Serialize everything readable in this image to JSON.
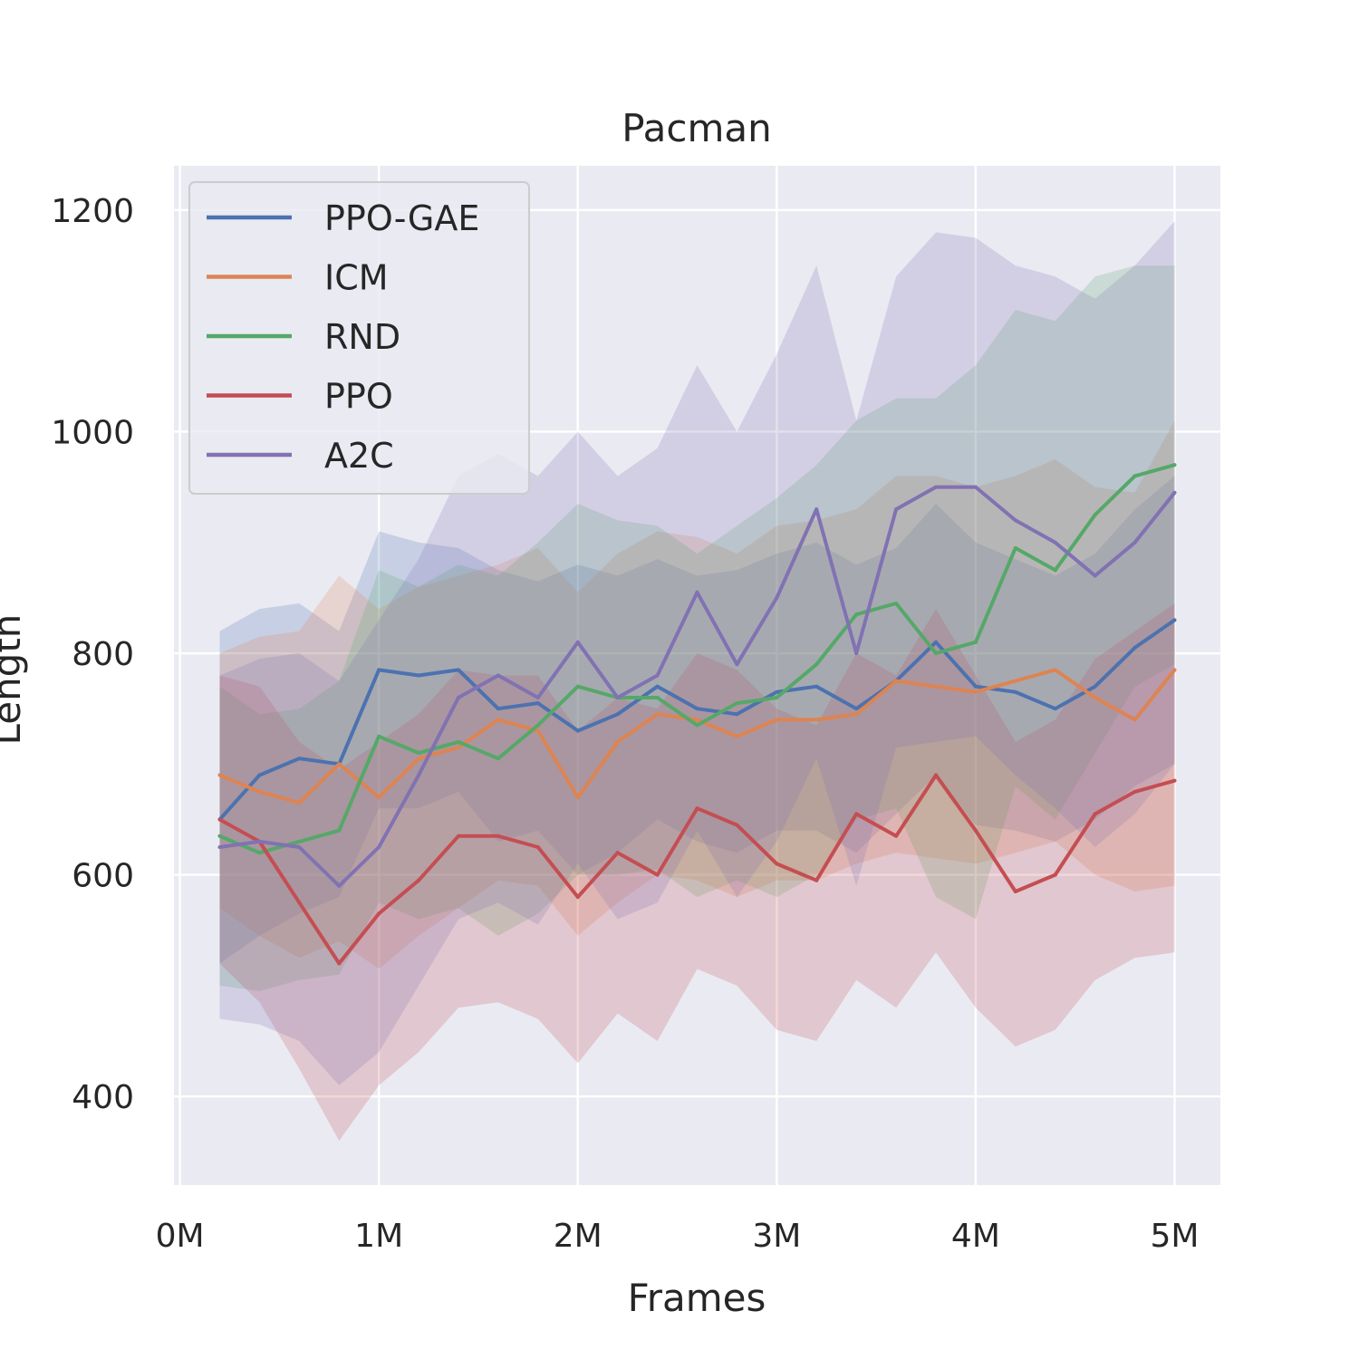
{
  "chart_data": {
    "type": "line",
    "title": "Pacman",
    "xlabel": "Frames",
    "ylabel": "Length",
    "xlim": [
      -30000,
      5230000
    ],
    "ylim": [
      320,
      1240
    ],
    "x_ticks": [
      {
        "value": 0,
        "label": "0M"
      },
      {
        "value": 1000000,
        "label": "1M"
      },
      {
        "value": 2000000,
        "label": "2M"
      },
      {
        "value": 3000000,
        "label": "3M"
      },
      {
        "value": 4000000,
        "label": "4M"
      },
      {
        "value": 5000000,
        "label": "5M"
      }
    ],
    "y_ticks": [
      {
        "value": 400,
        "label": "400"
      },
      {
        "value": 600,
        "label": "600"
      },
      {
        "value": 800,
        "label": "800"
      },
      {
        "value": 1000,
        "label": "1000"
      },
      {
        "value": 1200,
        "label": "1200"
      }
    ],
    "grid": true,
    "legend_position": "top-left",
    "x": [
      200000,
      400000,
      600000,
      800000,
      1000000,
      1200000,
      1400000,
      1600000,
      1800000,
      2000000,
      2200000,
      2400000,
      2600000,
      2800000,
      3000000,
      3200000,
      3400000,
      3600000,
      3800000,
      4000000,
      4200000,
      4400000,
      4600000,
      4800000,
      5000000
    ],
    "series": [
      {
        "name": "PPO-GAE",
        "color": "#4c72b0",
        "values": [
          650,
          690,
          705,
          700,
          785,
          780,
          785,
          750,
          755,
          730,
          745,
          770,
          750,
          745,
          765,
          770,
          750,
          775,
          810,
          770,
          765,
          750,
          770,
          805,
          830
        ],
        "upper": [
          820,
          840,
          845,
          820,
          910,
          900,
          895,
          875,
          865,
          880,
          870,
          885,
          870,
          875,
          890,
          900,
          880,
          895,
          935,
          900,
          885,
          870,
          890,
          930,
          960
        ],
        "lower": [
          520,
          545,
          565,
          580,
          660,
          660,
          675,
          630,
          640,
          600,
          620,
          650,
          630,
          620,
          640,
          640,
          620,
          655,
          690,
          645,
          640,
          630,
          650,
          680,
          700
        ]
      },
      {
        "name": "ICM",
        "color": "#dd8452",
        "values": [
          690,
          675,
          665,
          700,
          670,
          705,
          715,
          740,
          730,
          670,
          720,
          745,
          740,
          725,
          740,
          740,
          745,
          775,
          770,
          765,
          775,
          785,
          760,
          740,
          785
        ],
        "upper": [
          800,
          815,
          820,
          870,
          840,
          860,
          870,
          880,
          895,
          855,
          890,
          910,
          905,
          890,
          915,
          920,
          930,
          960,
          960,
          950,
          960,
          975,
          950,
          945,
          1010
        ],
        "lower": [
          570,
          545,
          525,
          540,
          515,
          545,
          570,
          595,
          590,
          545,
          575,
          600,
          595,
          580,
          595,
          595,
          610,
          620,
          615,
          610,
          620,
          630,
          600,
          585,
          590
        ]
      },
      {
        "name": "RND",
        "color": "#55a868",
        "values": [
          635,
          620,
          630,
          640,
          725,
          710,
          720,
          705,
          735,
          770,
          760,
          760,
          735,
          755,
          760,
          790,
          835,
          845,
          800,
          810,
          895,
          875,
          925,
          960,
          970
        ],
        "upper": [
          770,
          745,
          750,
          775,
          875,
          860,
          880,
          870,
          900,
          935,
          920,
          915,
          890,
          915,
          940,
          970,
          1010,
          1030,
          1030,
          1060,
          1110,
          1100,
          1140,
          1150,
          1150
        ],
        "lower": [
          500,
          495,
          505,
          510,
          575,
          560,
          570,
          545,
          565,
          600,
          600,
          605,
          580,
          595,
          580,
          600,
          650,
          660,
          580,
          560,
          680,
          650,
          710,
          770,
          790
        ]
      },
      {
        "name": "PPO",
        "color": "#c44e52",
        "values": [
          650,
          630,
          575,
          520,
          565,
          595,
          635,
          635,
          625,
          580,
          620,
          600,
          660,
          645,
          610,
          595,
          655,
          635,
          690,
          640,
          585,
          600,
          655,
          675,
          685
        ],
        "upper": [
          780,
          770,
          720,
          695,
          720,
          745,
          785,
          780,
          780,
          730,
          760,
          750,
          800,
          785,
          750,
          735,
          800,
          780,
          840,
          780,
          720,
          740,
          795,
          820,
          845
        ],
        "lower": [
          520,
          485,
          425,
          360,
          410,
          440,
          480,
          485,
          470,
          430,
          475,
          450,
          515,
          500,
          460,
          450,
          505,
          480,
          530,
          480,
          445,
          460,
          505,
          525,
          530
        ]
      },
      {
        "name": "A2C",
        "color": "#8172b3",
        "values": [
          625,
          630,
          625,
          590,
          625,
          690,
          760,
          780,
          760,
          810,
          760,
          780,
          855,
          790,
          850,
          930,
          800,
          930,
          950,
          950,
          920,
          900,
          870,
          900,
          945
        ],
        "upper": [
          780,
          795,
          800,
          775,
          830,
          885,
          960,
          980,
          960,
          1000,
          960,
          985,
          1060,
          1000,
          1070,
          1150,
          1010,
          1140,
          1180,
          1175,
          1150,
          1140,
          1120,
          1150,
          1190
        ],
        "lower": [
          470,
          465,
          450,
          410,
          440,
          500,
          560,
          575,
          555,
          610,
          560,
          575,
          640,
          580,
          630,
          705,
          590,
          715,
          720,
          725,
          690,
          660,
          625,
          655,
          700
        ]
      }
    ]
  }
}
